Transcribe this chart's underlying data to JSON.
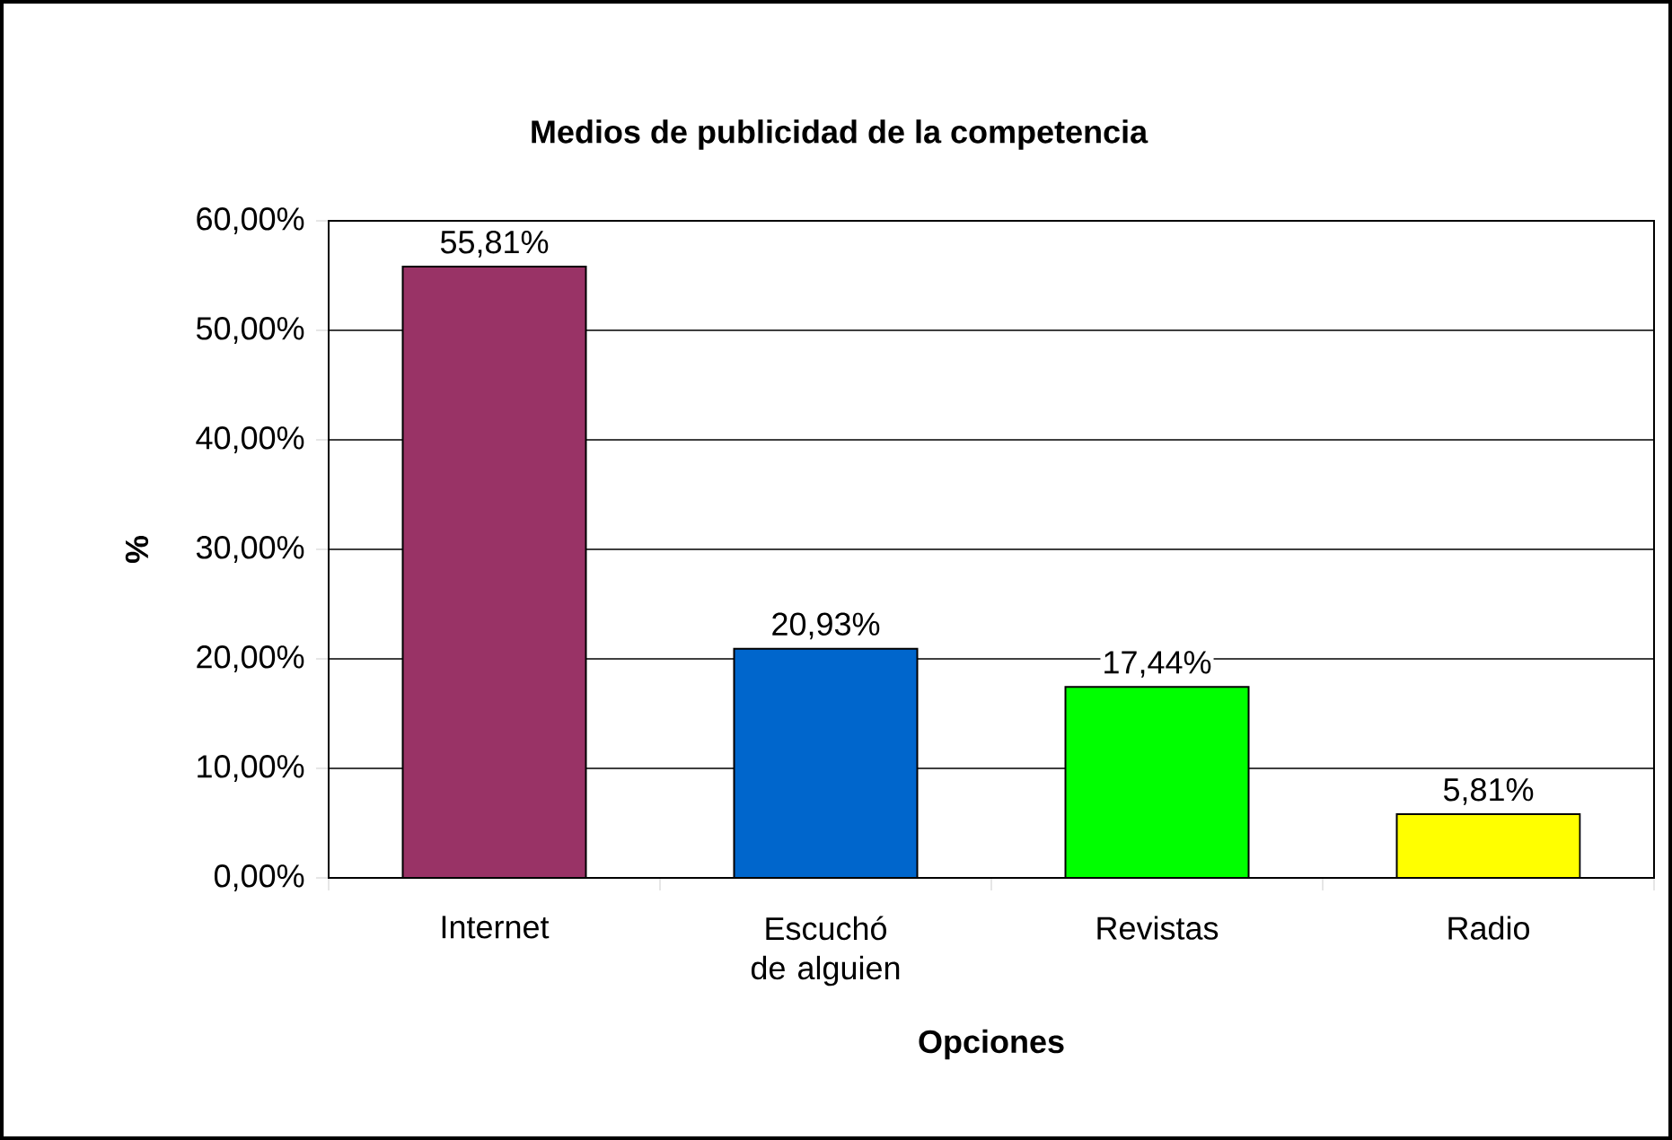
{
  "chart_data": {
    "type": "bar",
    "title": "Medios de publicidad de la competencia",
    "xlabel": "Opciones",
    "ylabel": "%",
    "categories": [
      "Internet",
      "Escuchó de alguien",
      "Revistas",
      "Radio"
    ],
    "values": [
      55.81,
      20.93,
      17.44,
      5.81
    ],
    "colors": [
      "#993366",
      "#0066cc",
      "#00ff00",
      "#ffff00"
    ],
    "value_labels": [
      "55,81%",
      "20,93%",
      "17,44%",
      "5,81%"
    ],
    "ylim": [
      0,
      60
    ],
    "yticks": [
      {
        "value": 0,
        "label": "0,00%"
      },
      {
        "value": 10,
        "label": "10,00%"
      },
      {
        "value": 20,
        "label": "20,00%"
      },
      {
        "value": 30,
        "label": "30,00%"
      },
      {
        "value": 40,
        "label": "40,00%"
      },
      {
        "value": 50,
        "label": "50,00%"
      },
      {
        "value": 60,
        "label": "60,00%"
      }
    ],
    "grid": "y"
  }
}
